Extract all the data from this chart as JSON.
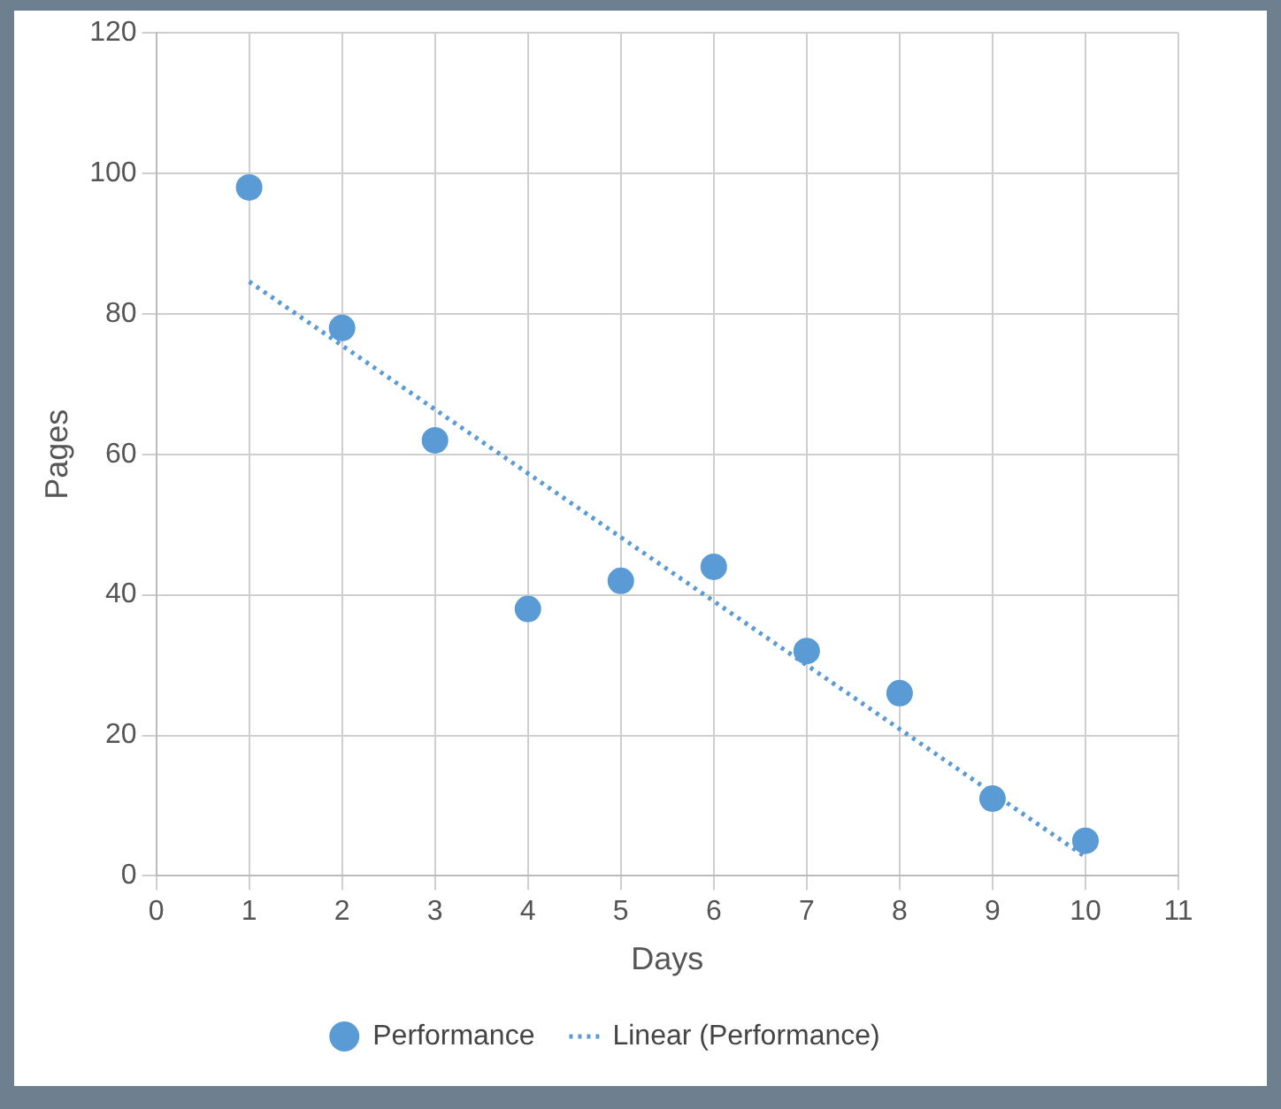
{
  "chart_data": {
    "type": "scatter",
    "xlabel": "Days",
    "ylabel": "Pages",
    "xlim": [
      0,
      11
    ],
    "xticks": [
      0,
      1,
      2,
      3,
      4,
      5,
      6,
      7,
      8,
      9,
      10,
      11
    ],
    "ylim": [
      0,
      120
    ],
    "yticks": [
      0,
      20,
      40,
      60,
      80,
      100,
      120
    ],
    "grid": true,
    "legend": "bottom",
    "marker": "circle",
    "series": [
      {
        "name": "Performance",
        "color": "#5b9bd5",
        "x": [
          1,
          2,
          3,
          4,
          5,
          6,
          7,
          8,
          9,
          10
        ],
        "values": [
          98,
          78,
          62,
          38,
          42,
          44,
          32,
          26,
          11,
          5
        ]
      },
      {
        "name": "Linear (Performance)",
        "type": "line",
        "color": "#5b9bd5",
        "line_style": "dotted",
        "marker": "none",
        "x": [
          1,
          10
        ],
        "values": [
          84.6,
          2.7
        ]
      }
    ]
  }
}
